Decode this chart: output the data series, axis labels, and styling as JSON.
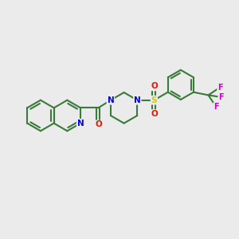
{
  "background_color": "#ebebeb",
  "bond_color": "#3a7a3a",
  "bond_width": 1.5,
  "nitrogen_color": "#0000ee",
  "oxygen_color": "#ee1100",
  "sulfur_color": "#cccc00",
  "fluorine_color": "#cc00cc",
  "fig_width": 3.0,
  "fig_height": 3.0,
  "dpi": 100,
  "xlim": [
    0,
    12
  ],
  "ylim": [
    0,
    10
  ]
}
